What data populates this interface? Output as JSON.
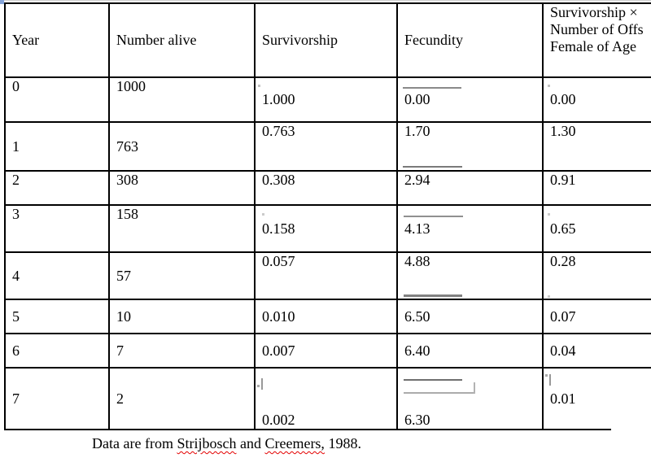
{
  "table": {
    "columns": [
      "Year",
      "Number alive",
      "Survivorship",
      "Fecundity",
      "Survivorship ×\nNumber of Offs\nFemale of Age"
    ],
    "rows": [
      [
        "0",
        "1000",
        "1.000",
        "0.00",
        "0.00"
      ],
      [
        "1",
        "763",
        "0.763",
        "1.70",
        "1.30"
      ],
      [
        "2",
        "308",
        "0.308",
        "2.94",
        "0.91"
      ],
      [
        "3",
        "158",
        "0.158",
        "4.13",
        "0.65"
      ],
      [
        "4",
        "57",
        "0.057",
        "4.88",
        "0.28"
      ],
      [
        "5",
        "10",
        "0.010",
        "6.50",
        "0.07"
      ],
      [
        "6",
        "7",
        "0.007",
        "6.40",
        "0.04"
      ],
      [
        "7",
        "2",
        "0.002",
        "6.30",
        "0.01"
      ]
    ]
  },
  "caption": {
    "prefix": "Data are from ",
    "misspelled_1": "Strijbosch",
    "middle": " and ",
    "misspelled_2": "Creemers,",
    "suffix": " 1988."
  },
  "colors": {
    "text": "#000000",
    "table_border": "#000000",
    "spellcheck_squiggle": "#e30000",
    "fraction_bar": "#808080",
    "corner_mark": "#84a3d8"
  }
}
